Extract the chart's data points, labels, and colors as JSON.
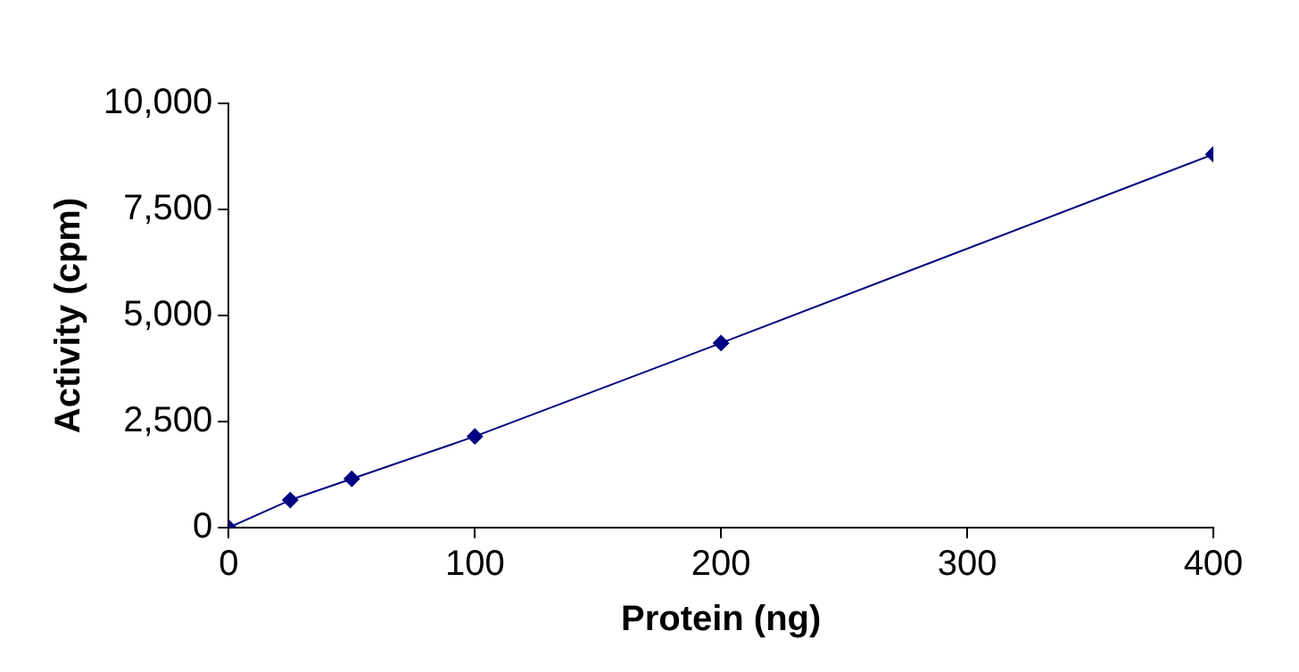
{
  "chart_data": {
    "type": "line",
    "xlabel": "Protein (ng)",
    "ylabel": "Activity (cpm)",
    "x": [
      0,
      25,
      50,
      100,
      200,
      400
    ],
    "series": [
      {
        "color": "#000080",
        "values": [
          0,
          650,
          1150,
          2150,
          4350,
          8800
        ]
      }
    ],
    "xlim": [
      0,
      400
    ],
    "xticks": [
      0,
      100,
      200,
      300,
      400
    ],
    "ylim": [
      0,
      10000
    ],
    "yticks": [
      {
        "value": 0,
        "label": "0"
      },
      {
        "value": 2500,
        "label": "2,500"
      },
      {
        "value": 5000,
        "label": "5,000"
      },
      {
        "value": 7500,
        "label": "7,500"
      },
      {
        "value": 10000,
        "label": "10,000"
      }
    ],
    "grid": false,
    "legend": false,
    "marker": "diamond",
    "line_style": "solid"
  }
}
